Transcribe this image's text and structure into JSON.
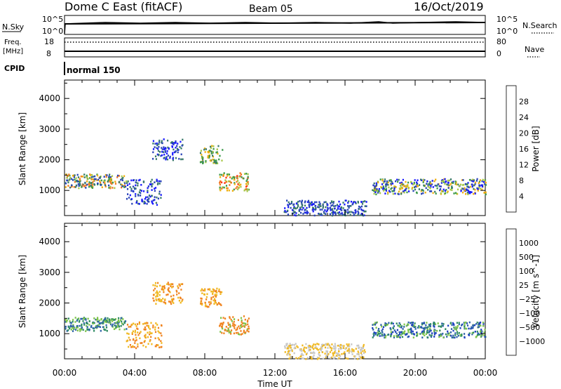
{
  "header": {
    "title": "Dome C East (fitACF)",
    "beam": "Beam 05",
    "date": "16/Oct/2019"
  },
  "param_panels": {
    "nsky_label": "N.Sky",
    "nsearch_label": "N.Search",
    "nsky_ticks": [
      "10^5",
      "10^0"
    ],
    "nsearch_ticks": [
      "10^5",
      "10^0"
    ],
    "freq_label_1": "Freq.",
    "freq_label_2": "[MHz]",
    "freq_ticks": [
      "18",
      "8"
    ],
    "nave_label": "Nave",
    "nave_ticks": [
      "80",
      "0"
    ],
    "cpid_label": "CPID",
    "cpid_value": "normal 150"
  },
  "chart_data": [
    {
      "type": "heatmap",
      "name": "power-panel",
      "ylabel": "Slant Range [km]",
      "xlabel": "",
      "ylim": [
        180,
        4600
      ],
      "yticks": [
        1000,
        2000,
        3000,
        4000
      ],
      "xlim": [
        0,
        24
      ],
      "colorbar": {
        "label": "Power [dB]",
        "ticks": [
          "4",
          "8",
          "12",
          "16",
          "20",
          "24",
          "28"
        ],
        "colors": [
          "#1a1aff",
          "#2a44b8",
          "#3a7a6a",
          "#3c9a4a",
          "#a8c84a",
          "#f0b010",
          "#f07820",
          "#ff3010"
        ]
      },
      "regions": [
        {
          "t0": 0.0,
          "t1": 3.5,
          "r0": 1100,
          "r1": 1550,
          "level": "mixed-high"
        },
        {
          "t0": 3.5,
          "t1": 5.5,
          "r0": 550,
          "r1": 1400,
          "level": "low"
        },
        {
          "t0": 5.0,
          "t1": 6.7,
          "r0": 2000,
          "r1": 2700,
          "level": "low"
        },
        {
          "t0": 7.7,
          "t1": 9.0,
          "r0": 1900,
          "r1": 2500,
          "level": "mid"
        },
        {
          "t0": 8.8,
          "t1": 10.5,
          "r0": 1000,
          "r1": 1600,
          "level": "high"
        },
        {
          "t0": 12.5,
          "t1": 17.2,
          "r0": 200,
          "r1": 700,
          "level": "low"
        },
        {
          "t0": 17.5,
          "t1": 24.0,
          "r0": 900,
          "r1": 1400,
          "level": "mixed"
        }
      ]
    },
    {
      "type": "heatmap",
      "name": "velocity-panel",
      "ylabel": "Slant Range [km]",
      "xlabel": "Time UT",
      "ylim": [
        180,
        4600
      ],
      "yticks": [
        1000,
        2000,
        3000,
        4000
      ],
      "xlim": [
        0,
        24
      ],
      "xticks": [
        "00:00",
        "04:00",
        "08:00",
        "12:00",
        "16:00",
        "20:00",
        "00:00"
      ],
      "colorbar": {
        "label": "Velocity [m s^-1]",
        "ticks": [
          "1000",
          "500",
          "100",
          "25",
          "−25",
          "−100",
          "−500",
          "−1000"
        ],
        "colors": [
          "#1c3fc0",
          "#2d62a8",
          "#2f8c62",
          "#7ec44a",
          "#c8c8c8",
          "#f0b820",
          "#f08420",
          "#f05018",
          "#ff1010"
        ]
      },
      "regions": [
        {
          "t0": 0.0,
          "t1": 3.5,
          "r0": 1100,
          "r1": 1550,
          "level": "green-blue"
        },
        {
          "t0": 3.5,
          "t1": 5.5,
          "r0": 550,
          "r1": 1400,
          "level": "orange"
        },
        {
          "t0": 5.0,
          "t1": 6.7,
          "r0": 2000,
          "r1": 2700,
          "level": "orange"
        },
        {
          "t0": 7.7,
          "t1": 9.0,
          "r0": 1900,
          "r1": 2500,
          "level": "orange"
        },
        {
          "t0": 8.8,
          "t1": 10.5,
          "r0": 1000,
          "r1": 1600,
          "level": "orange-green"
        },
        {
          "t0": 12.5,
          "t1": 17.2,
          "r0": 200,
          "r1": 700,
          "level": "yellow"
        },
        {
          "t0": 17.5,
          "t1": 24.0,
          "r0": 900,
          "r1": 1400,
          "level": "blue-green"
        }
      ]
    }
  ]
}
